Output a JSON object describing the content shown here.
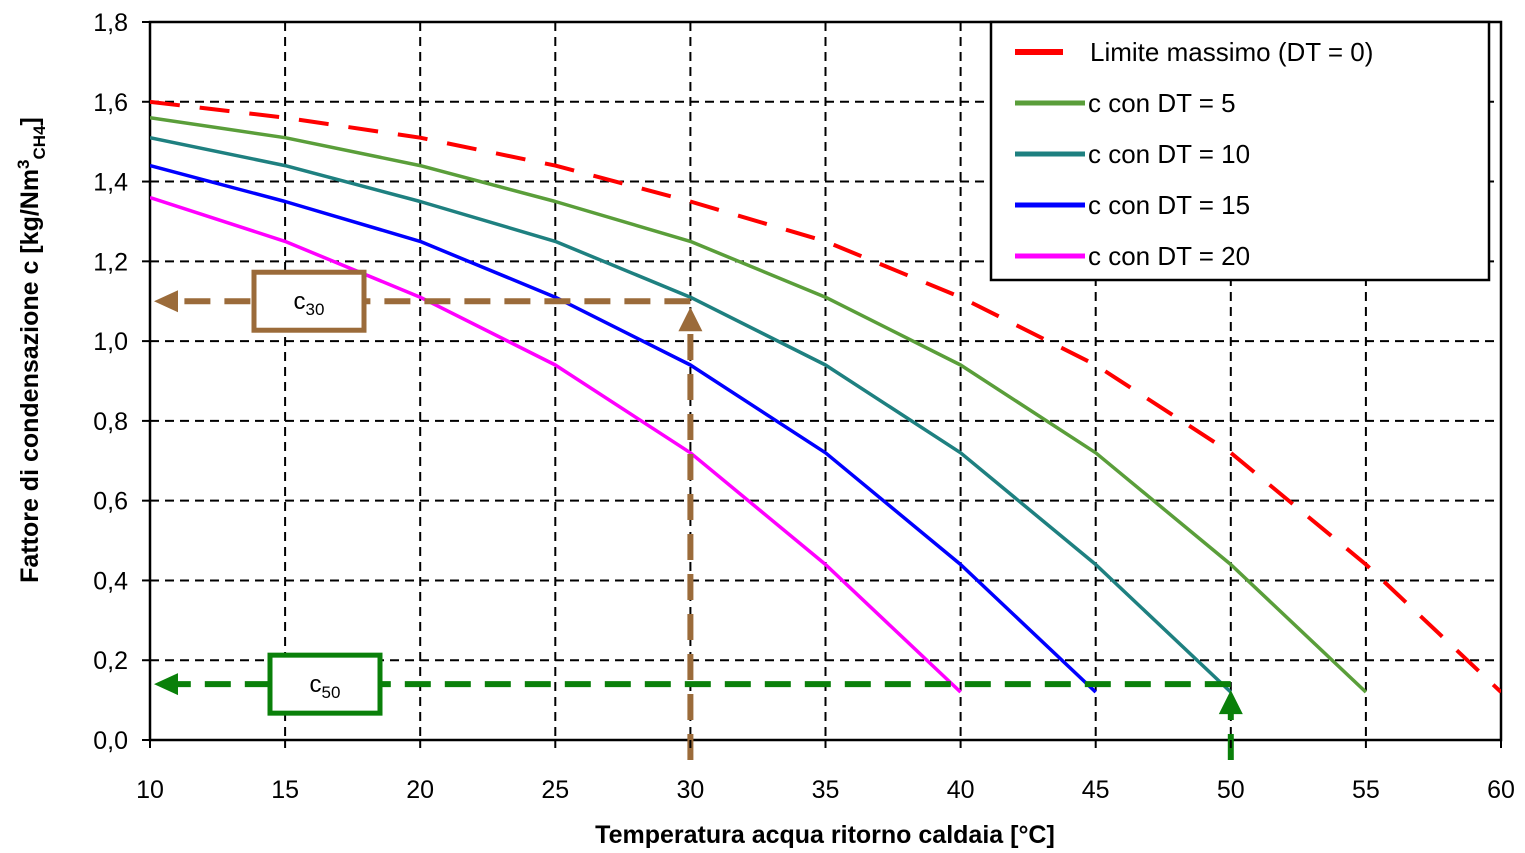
{
  "colors": {
    "limit": "#ff0000",
    "dt5": "#5a9e3a",
    "dt10": "#1e8080",
    "dt15": "#0000ff",
    "dt20": "#ff00ff",
    "c30_annotation": "#9b6b3a",
    "c50_annotation": "#0a800a",
    "grid": "#000000"
  },
  "chart_data": {
    "type": "line",
    "xlabel": "Temperatura acqua ritorno caldaia [°C]",
    "ylabel_main": "Fattore di condensazione c [kg/Nm",
    "ylabel_sup": "3",
    "ylabel_sub": "CH4",
    "ylabel_end": "]",
    "xlim": [
      10,
      60
    ],
    "ylim": [
      0,
      1.8
    ],
    "xticks": [
      10,
      15,
      20,
      25,
      30,
      35,
      40,
      45,
      50,
      55,
      60
    ],
    "xtick_labels": [
      "10",
      "15",
      "20",
      "25",
      "30",
      "35",
      "40",
      "45",
      "50",
      "55",
      "60"
    ],
    "yticks": [
      0,
      0.2,
      0.4,
      0.6,
      0.8,
      1.0,
      1.2,
      1.4,
      1.6,
      1.8
    ],
    "ytick_labels": [
      "0,0",
      "0,2",
      "0,4",
      "0,6",
      "0,8",
      "1,0",
      "1,2",
      "1,4",
      "1,6",
      "1,8"
    ],
    "grid": true,
    "legend_position": "top-right",
    "series": [
      {
        "name": "Limite massimo (DT = 0)",
        "color_key": "limit",
        "dashed": true,
        "x": [
          10,
          15,
          20,
          25,
          30,
          35,
          40,
          45,
          50,
          55,
          60
        ],
        "y": [
          1.6,
          1.56,
          1.51,
          1.44,
          1.35,
          1.25,
          1.11,
          0.94,
          0.72,
          0.44,
          0.12
        ]
      },
      {
        "name": "c con DT = 5",
        "color_key": "dt5",
        "dashed": false,
        "x": [
          10,
          15,
          20,
          25,
          30,
          35,
          40,
          45,
          50,
          55
        ],
        "y": [
          1.56,
          1.51,
          1.44,
          1.35,
          1.25,
          1.11,
          0.94,
          0.72,
          0.44,
          0.12
        ]
      },
      {
        "name": "c con DT = 10",
        "color_key": "dt10",
        "dashed": false,
        "x": [
          10,
          15,
          20,
          25,
          30,
          35,
          40,
          45,
          50
        ],
        "y": [
          1.51,
          1.44,
          1.35,
          1.25,
          1.11,
          0.94,
          0.72,
          0.44,
          0.12
        ]
      },
      {
        "name": "c con DT = 15",
        "color_key": "dt15",
        "dashed": false,
        "x": [
          10,
          15,
          20,
          25,
          30,
          35,
          40,
          45
        ],
        "y": [
          1.44,
          1.35,
          1.25,
          1.11,
          0.94,
          0.72,
          0.44,
          0.12
        ]
      },
      {
        "name": "c con DT = 20",
        "color_key": "dt20",
        "dashed": false,
        "x": [
          10,
          15,
          20,
          25,
          30,
          35,
          40
        ],
        "y": [
          1.36,
          1.25,
          1.11,
          0.94,
          0.72,
          0.44,
          0.12
        ]
      }
    ],
    "annotations": [
      {
        "id": "c30",
        "label_main": "c",
        "label_sub": "30",
        "color_key": "c30_annotation",
        "x_value": 30,
        "y_value": 1.1,
        "x_base": 0
      },
      {
        "id": "c50",
        "label_main": "c",
        "label_sub": "50",
        "color_key": "c50_annotation",
        "x_value": 50,
        "y_value": 0.14,
        "x_base": 0
      }
    ]
  }
}
